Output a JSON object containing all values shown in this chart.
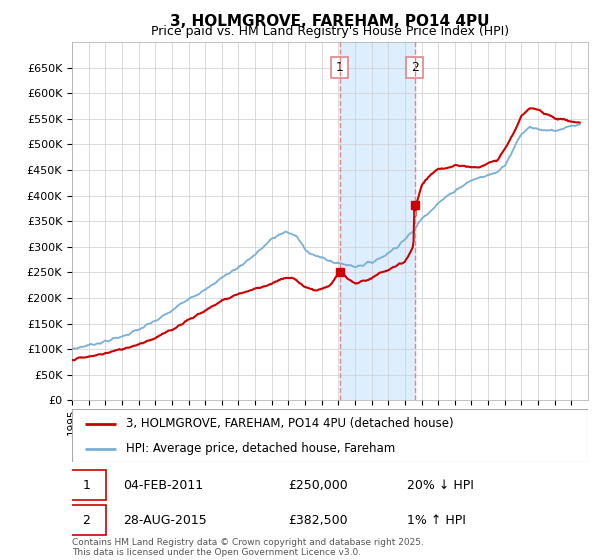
{
  "title": "3, HOLMGROVE, FAREHAM, PO14 4PU",
  "subtitle": "Price paid vs. HM Land Registry's House Price Index (HPI)",
  "legend_line1": "3, HOLMGROVE, FAREHAM, PO14 4PU (detached house)",
  "legend_line2": "HPI: Average price, detached house, Fareham",
  "annotation1_date": "04-FEB-2011",
  "annotation1_price": "£250,000",
  "annotation1_hpi": "20% ↓ HPI",
  "annotation2_date": "28-AUG-2015",
  "annotation2_price": "£382,500",
  "annotation2_hpi": "1% ↑ HPI",
  "footer": "Contains HM Land Registry data © Crown copyright and database right 2025.\nThis data is licensed under the Open Government Licence v3.0.",
  "property_color": "#cc0000",
  "hpi_color": "#7ab0d4",
  "shaded_region_color": "#ddeeff",
  "annotation_line_color": "#dd8888",
  "ylim_min": 0,
  "ylim_max": 700000
}
